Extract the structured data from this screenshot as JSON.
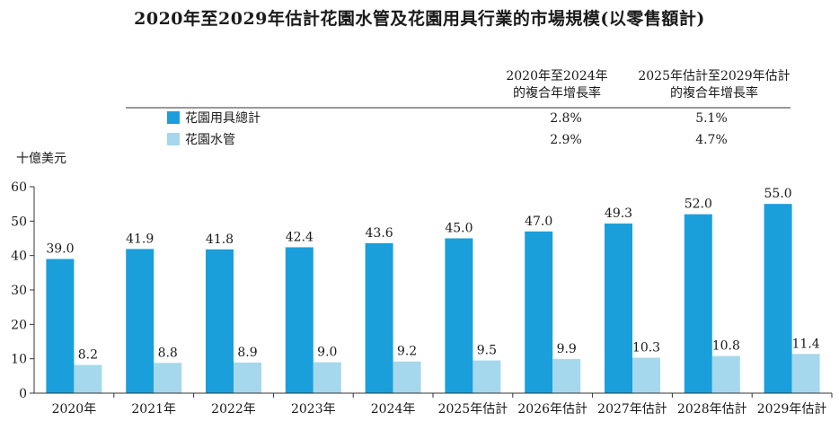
{
  "chart_data": {
    "type": "bar",
    "title": "2020年至2029年估計花園水管及花園用具行業的市場規模(以零售額計)",
    "ylabel": "十億美元",
    "ylim": [
      0,
      60
    ],
    "yticks": [
      0,
      10,
      20,
      30,
      40,
      50,
      60
    ],
    "categories": [
      "2020年",
      "2021年",
      "2022年",
      "2023年",
      "2024年",
      "2025年估計",
      "2026年估計",
      "2027年估計",
      "2028年估計",
      "2029年估計"
    ],
    "series": [
      {
        "name": "花園用具總計",
        "color": "#1a9fdb",
        "values": [
          39.0,
          41.9,
          41.8,
          42.4,
          43.6,
          45.0,
          47.0,
          49.3,
          52.0,
          55.0
        ],
        "labels": [
          "39.0",
          "41.9",
          "41.8",
          "42.4",
          "43.6",
          "45.0",
          "47.0",
          "49.3",
          "52.0",
          "55.0"
        ]
      },
      {
        "name": "花園水管",
        "color": "#a5d8ec",
        "values": [
          8.2,
          8.8,
          8.9,
          9.0,
          9.2,
          9.5,
          9.9,
          10.3,
          10.8,
          11.4
        ],
        "labels": [
          "8.2",
          "8.8",
          "8.9",
          "9.0",
          "9.2",
          "9.5",
          "9.9",
          "10.3",
          "10.8",
          "11.4"
        ]
      }
    ],
    "legend": {
      "position": "top",
      "cagr_headers": [
        [
          "2020年至2024年",
          "的複合年增長率"
        ],
        [
          "2025年估計至2029年估計",
          "的複合年增長率"
        ]
      ],
      "cagr_values": [
        [
          "2.8%",
          "5.1%"
        ],
        [
          "2.9%",
          "4.7%"
        ]
      ]
    }
  }
}
